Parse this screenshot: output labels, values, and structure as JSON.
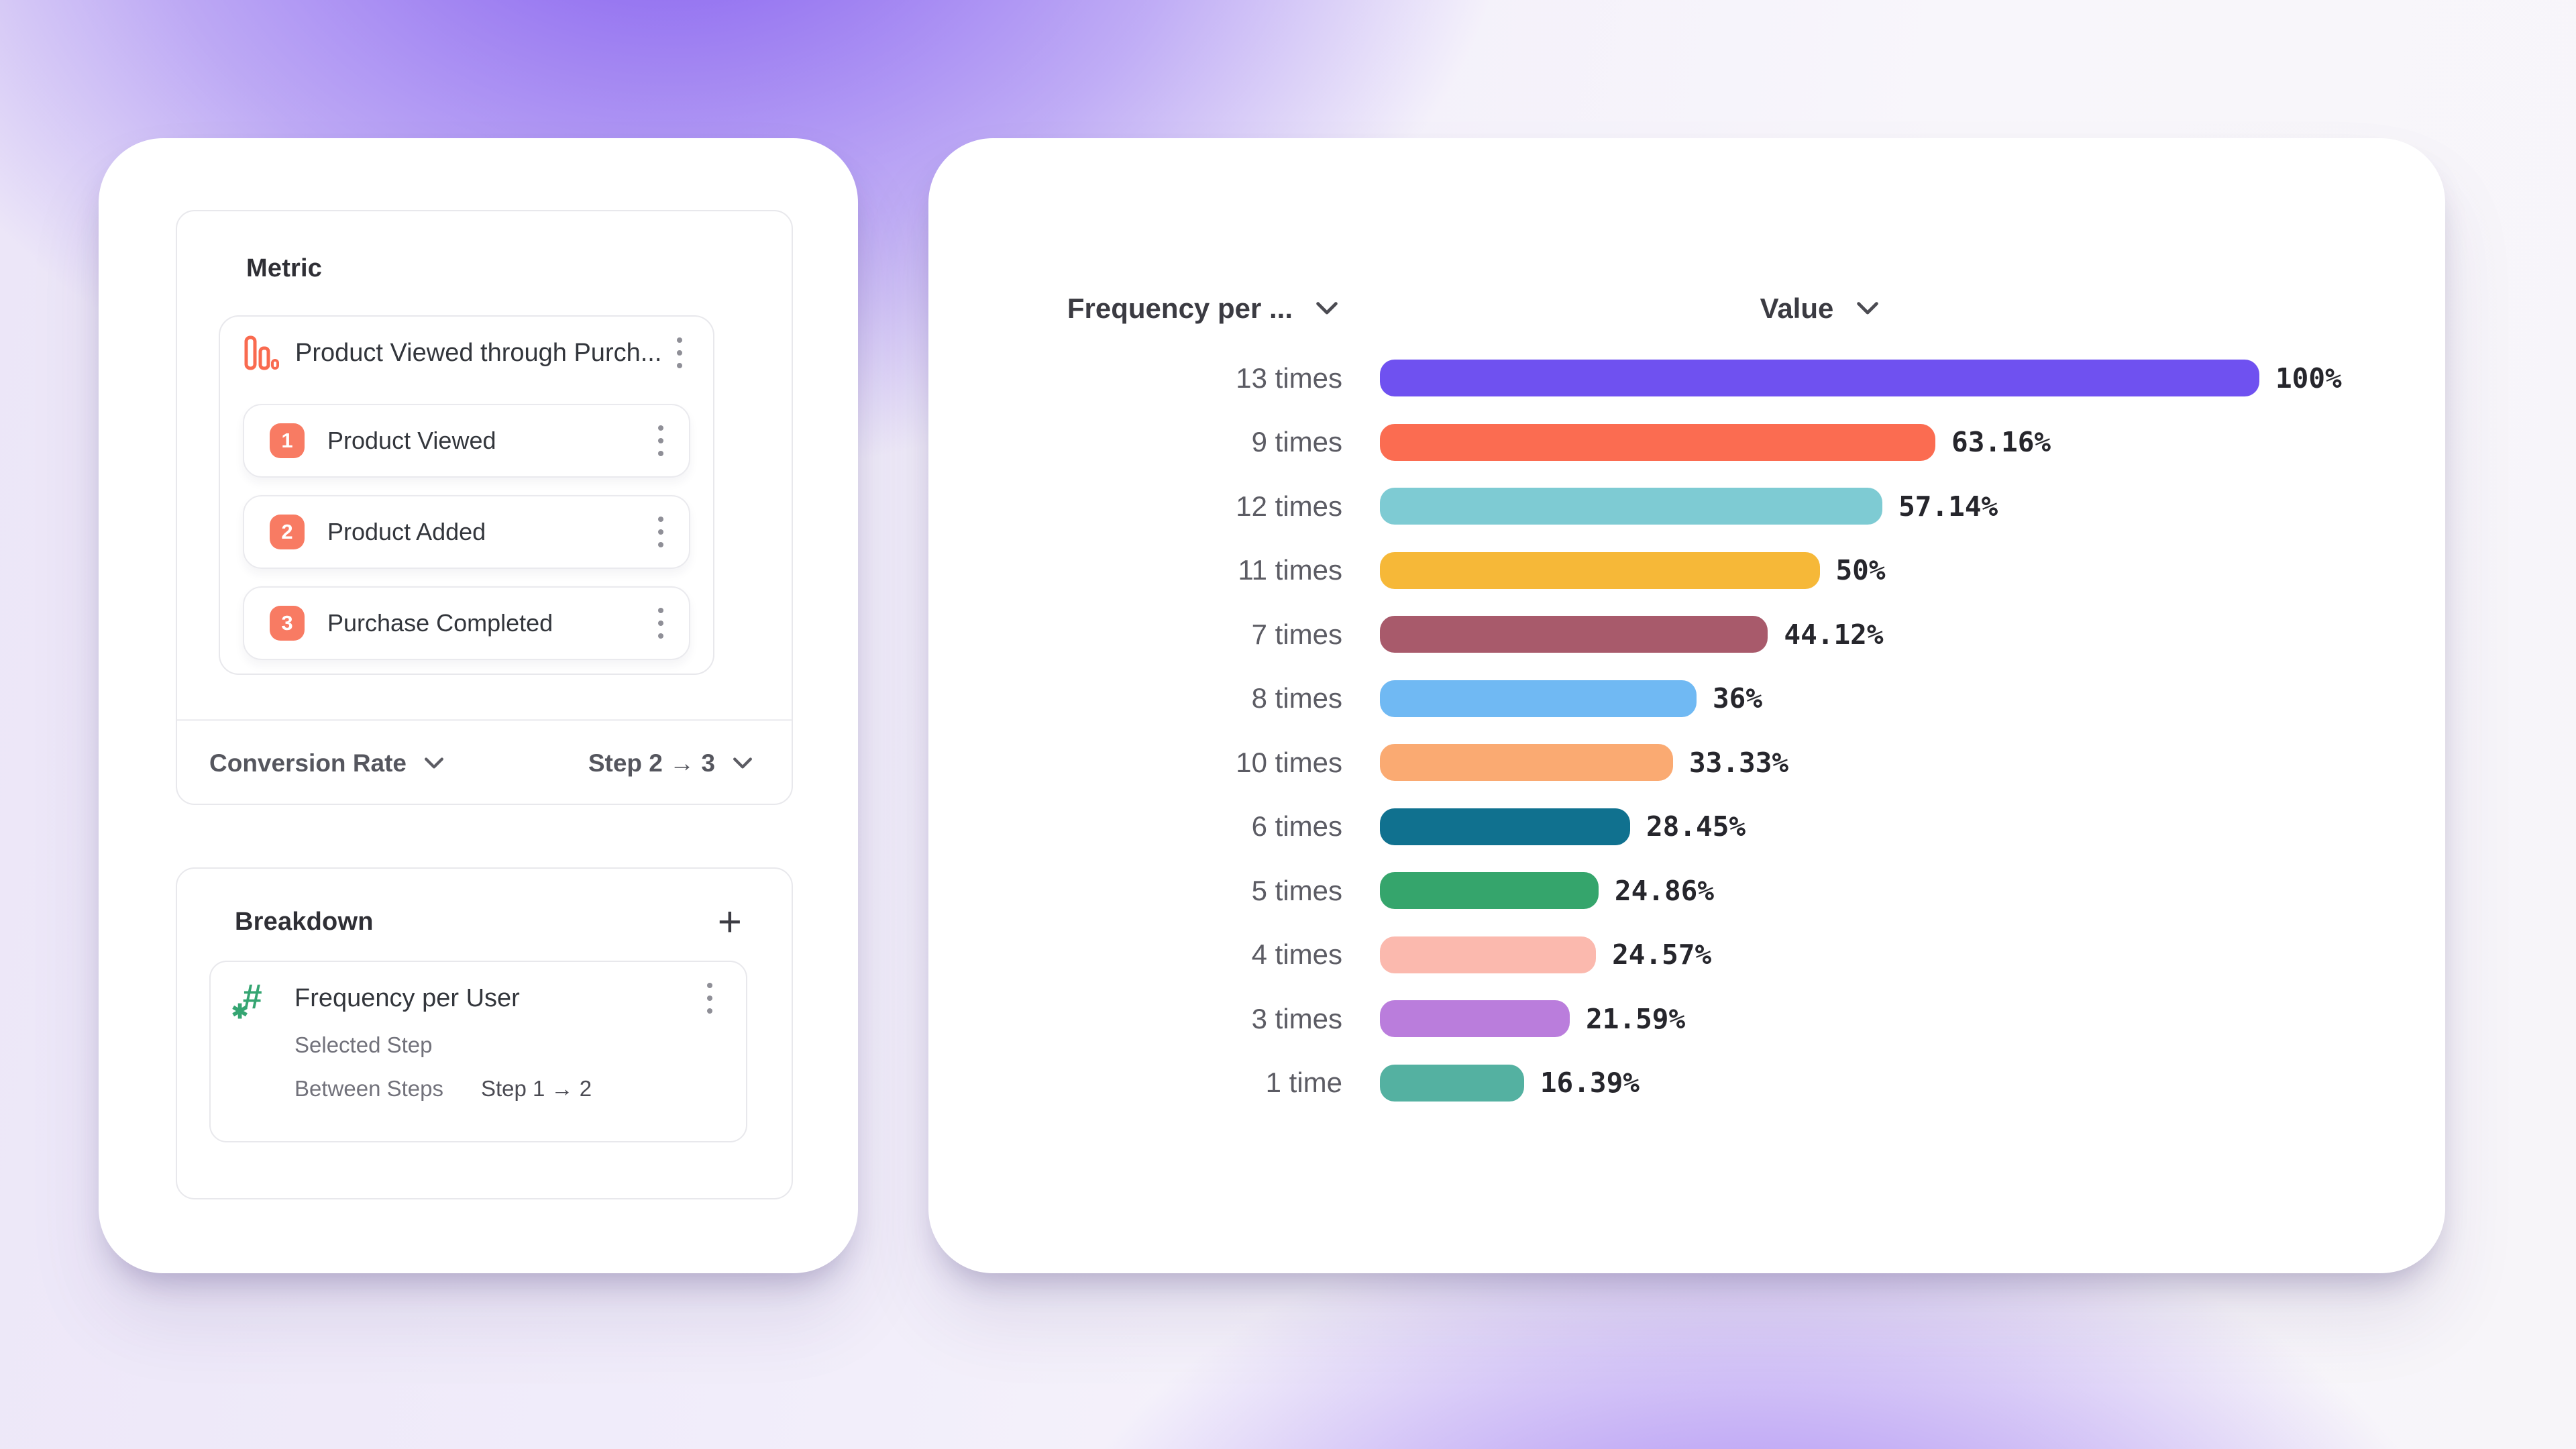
{
  "left_panel": {
    "metric_card": {
      "title": "Metric",
      "metric_item": {
        "icon": "funnel-bars-icon",
        "name": "Product Viewed through Purch...",
        "steps": [
          {
            "number": "1",
            "label": "Product Viewed"
          },
          {
            "number": "2",
            "label": "Product Added"
          },
          {
            "number": "3",
            "label": "Purchase Completed"
          }
        ]
      },
      "footer": {
        "measure_label": "Conversion Rate",
        "step_range_label": "Step 2 → 3"
      }
    },
    "breakdown_card": {
      "title": "Breakdown",
      "add_label": "+",
      "item": {
        "icon": "hash-star-icon",
        "name": "Frequency per User",
        "selected_step_label": "Selected Step",
        "between_steps_label": "Between Steps",
        "between_steps_value": "Step 1 → 2"
      }
    }
  },
  "chart_panel": {
    "category_header": "Frequency per ...",
    "value_header": "Value"
  },
  "chart_data": {
    "type": "bar",
    "orientation": "horizontal",
    "title": "",
    "xlabel": "Value",
    "ylabel": "Frequency per User",
    "xlim": [
      0,
      100
    ],
    "grid": false,
    "legend": "none",
    "value_label_position": "end",
    "categories": [
      "13 times",
      "9 times",
      "12 times",
      "11 times",
      "7 times",
      "8 times",
      "10 times",
      "6 times",
      "5 times",
      "4 times",
      "3 times",
      "1 time"
    ],
    "values": [
      100,
      63.16,
      57.14,
      50,
      44.12,
      36,
      33.33,
      28.45,
      24.86,
      24.57,
      21.59,
      16.39
    ],
    "value_labels": [
      "100%",
      "63.16%",
      "57.14%",
      "50%",
      "44.12%",
      "36%",
      "33.33%",
      "28.45%",
      "24.86%",
      "24.57%",
      "21.59%",
      "16.39%"
    ],
    "bar_colors": [
      "#6f51f0",
      "#fb6c51",
      "#7ecbd3",
      "#f6b838",
      "#a85a6b",
      "#70b9f3",
      "#faaa72",
      "#10718f",
      "#35a56c",
      "#fbb9ae",
      "#ba7ddc",
      "#54b1a1"
    ]
  },
  "colors": {
    "step_badge": "#f87b63",
    "funnel_icon": "#f96a4f",
    "hash_icon": "#35a572",
    "card_border": "#e8e8ec",
    "background_glow": "#8a63f0",
    "text_primary": "#33363c",
    "text_secondary": "#72727b",
    "value_text": "#26262c"
  }
}
